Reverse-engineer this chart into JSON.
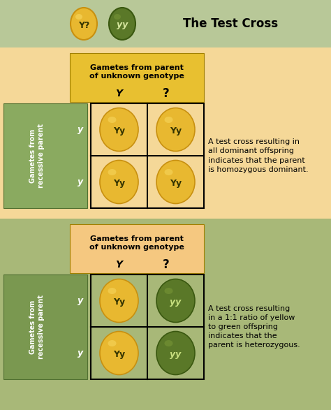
{
  "title": "The Test Cross",
  "bg_header": "#b8c898",
  "bg_panel1": "#f5d898",
  "bg_panel2": "#a8b878",
  "yellow_ball": "#e8b830",
  "yellow_ball_light": "#f8d860",
  "yellow_ball_dark": "#c89010",
  "green_ball": "#5a7828",
  "green_ball_light": "#7a9838",
  "green_ball_dark": "#3a5810",
  "gamete_label_bg1": "#e8c030",
  "gamete_label_bg2": "#f5c880",
  "side_label_bg1": "#8aaa60",
  "side_label_bg2": "#7a9850",
  "text_color": "#000000",
  "text_color_white": "#ffffff",
  "header_text1": "Gametes from parent",
  "header_text2": "of unknown genotype",
  "header_col1": "Y",
  "header_col2": "?",
  "side_label_row1": "y",
  "side_label_row2": "y",
  "desc1": "A test cross resulting in\nall dominant offspring\nindicates that the parent\nis homozygous dominant.",
  "desc2": "A test cross resulting\nin a 1:1 ratio of yellow\nto green offspring\nindicates that the\nparent is heterozygous.",
  "panel1_cells": [
    [
      "Yy",
      false
    ],
    [
      "Yy",
      false
    ],
    [
      "Yy",
      false
    ],
    [
      "Yy",
      false
    ]
  ],
  "panel2_cells": [
    [
      "Yy",
      false
    ],
    [
      "yy",
      true
    ],
    [
      "Yy",
      false
    ],
    [
      "yy",
      true
    ]
  ],
  "title_fontsize": 12,
  "header_fontsize": 8,
  "col_label_fontsize": 10,
  "cell_fontsize": 9,
  "side_fontsize": 7,
  "row_label_fontsize": 9,
  "desc_fontsize": 8,
  "fig_width": 4.74,
  "fig_height": 5.87,
  "dpi": 100
}
